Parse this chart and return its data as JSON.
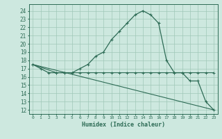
{
  "title": "",
  "xlabel": "Humidex (Indice chaleur)",
  "background_color": "#cde8df",
  "grid_color": "#a0c8b8",
  "line_color": "#2d6b55",
  "xlim": [
    -0.5,
    23.5
  ],
  "ylim": [
    11.5,
    24.8
  ],
  "yticks": [
    12,
    13,
    14,
    15,
    16,
    17,
    18,
    19,
    20,
    21,
    22,
    23,
    24
  ],
  "xticks": [
    0,
    1,
    2,
    3,
    4,
    5,
    6,
    7,
    8,
    9,
    10,
    11,
    12,
    13,
    14,
    15,
    16,
    17,
    18,
    19,
    20,
    21,
    22,
    23
  ],
  "line1_x": [
    0,
    1,
    2,
    3,
    4,
    5,
    6,
    7,
    8,
    9,
    10,
    11,
    12,
    13,
    14,
    15,
    16,
    17,
    18,
    19,
    20,
    21,
    22,
    23
  ],
  "line1_y": [
    17.5,
    17.0,
    16.5,
    16.5,
    16.5,
    16.5,
    17.0,
    17.5,
    18.5,
    19.0,
    20.5,
    21.5,
    22.5,
    23.5,
    24.0,
    23.5,
    22.5,
    18.0,
    16.5,
    16.5,
    15.5,
    15.5,
    13.0,
    12.0
  ],
  "line2_x": [
    0,
    3,
    4,
    5,
    6,
    7,
    8,
    9,
    10,
    11,
    12,
    13,
    14,
    15,
    16,
    17,
    18,
    19,
    20,
    21,
    22,
    23
  ],
  "line2_y": [
    17.5,
    16.5,
    16.5,
    16.5,
    16.5,
    16.5,
    16.5,
    16.5,
    16.5,
    16.5,
    16.5,
    16.5,
    16.5,
    16.5,
    16.5,
    16.5,
    16.5,
    16.5,
    16.5,
    16.5,
    16.5,
    16.5
  ],
  "line3_x": [
    0,
    23
  ],
  "line3_y": [
    17.5,
    12.0
  ],
  "marker_style": "+"
}
